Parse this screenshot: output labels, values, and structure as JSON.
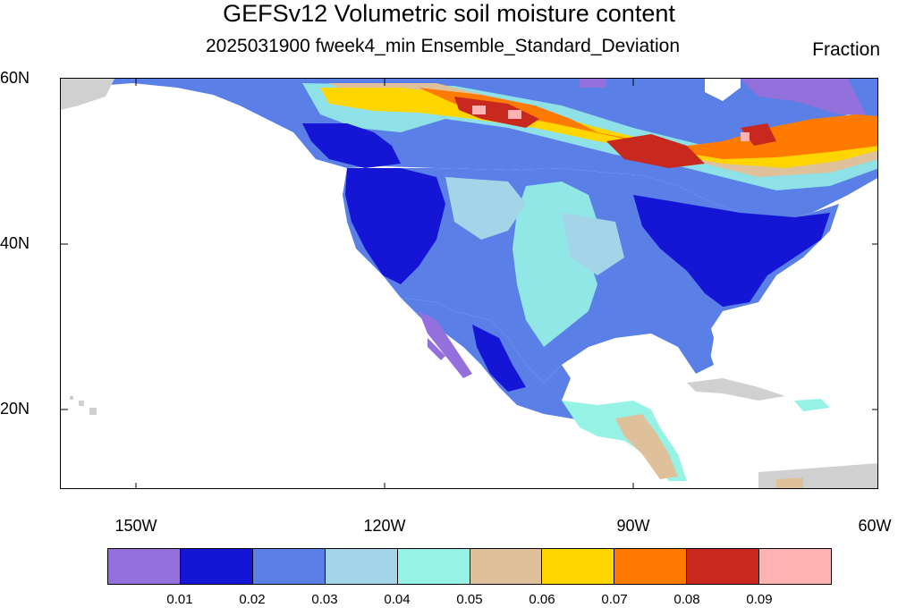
{
  "title": "GEFSv12 Volumetric soil moisture content",
  "subtitle": "2025031900 fweek4_min Ensemble_Standard_Deviation",
  "units": "Fraction",
  "map": {
    "lat_labels": [
      "60N",
      "40N",
      "20N"
    ],
    "lon_labels": [
      "150W",
      "120W",
      "90W",
      "60W"
    ]
  },
  "colorbar": {
    "colors": [
      "#9370DB",
      "#1515D6",
      "#5A7FE6",
      "#A4D4E8",
      "#97F2E6",
      "#DEC19A",
      "#FFD500",
      "#FF7A00",
      "#C8281E",
      "#FFB2B2"
    ],
    "labels": [
      "0.01",
      "0.02",
      "0.03",
      "0.04",
      "0.05",
      "0.06",
      "0.07",
      "0.08",
      "0.09"
    ]
  }
}
